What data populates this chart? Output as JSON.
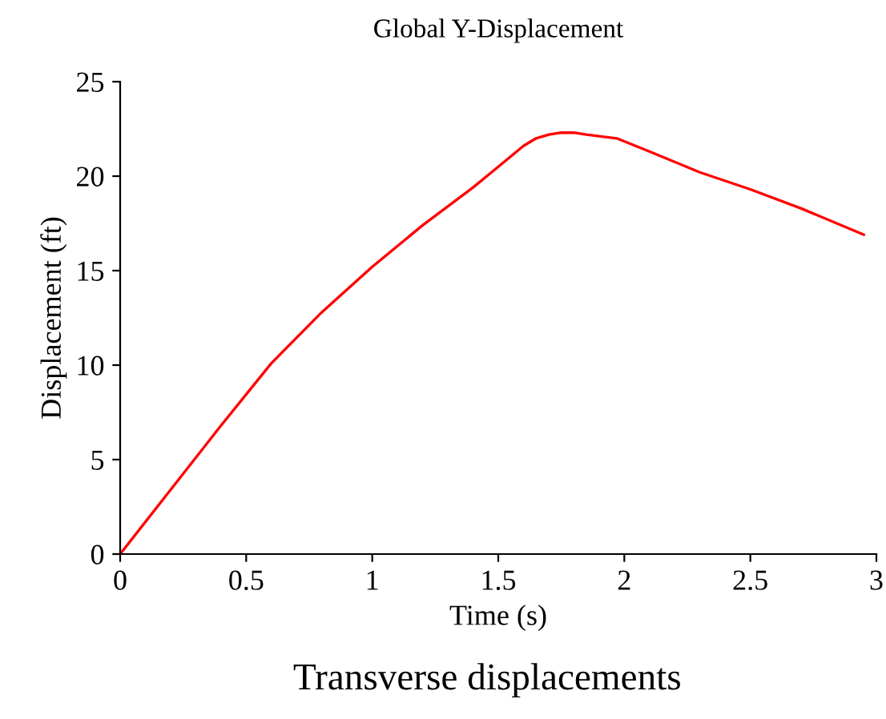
{
  "chart_data": {
    "type": "line",
    "title": "Global Y-Displacement",
    "xlabel": "Time (s)",
    "ylabel": "Displacement (ft)",
    "annotations": [
      "Transverse displacements"
    ],
    "series": [
      {
        "color": "#ff0000",
        "x": [
          0,
          0.2,
          0.4,
          0.6,
          0.8,
          1.0,
          1.2,
          1.4,
          1.5,
          1.6,
          1.65,
          1.7,
          1.75,
          1.8,
          1.85,
          1.97,
          2.1,
          2.3,
          2.5,
          2.7,
          2.95
        ],
        "values": [
          0,
          3.4,
          6.8,
          10.1,
          12.8,
          15.2,
          17.4,
          19.4,
          20.5,
          21.6,
          22.0,
          22.2,
          22.3,
          22.3,
          22.2,
          22.0,
          21.3,
          20.2,
          19.3,
          18.3,
          16.9
        ]
      }
    ],
    "xlim": [
      0,
      3
    ],
    "ylim": [
      0,
      25
    ],
    "xticks": [
      0,
      0.5,
      1,
      1.5,
      2,
      2.5,
      3
    ],
    "yticks": [
      0,
      5,
      10,
      15,
      20,
      25
    ],
    "grid": false,
    "legend": false,
    "marker": "none",
    "line_style": "solid"
  }
}
